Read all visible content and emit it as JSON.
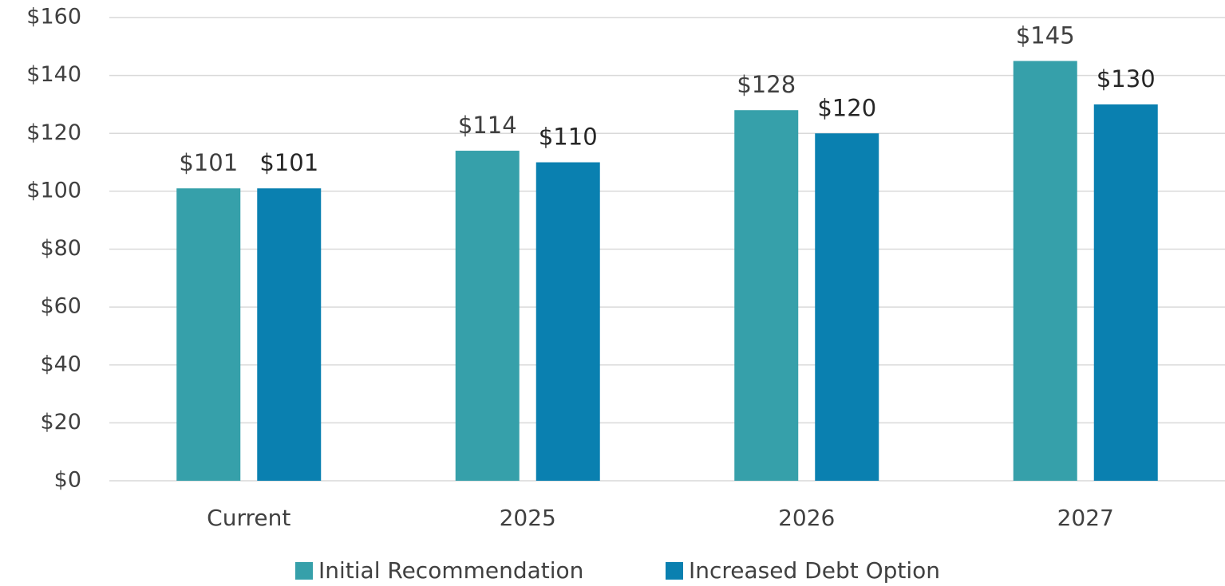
{
  "chart_data": {
    "type": "bar",
    "categories": [
      "Current",
      "2025",
      "2026",
      "2027"
    ],
    "series": [
      {
        "name": "Initial Recommendation",
        "color": "#36a0aa",
        "values": [
          101,
          114,
          128,
          145
        ],
        "value_labels": [
          "$101",
          "$114",
          "$128",
          "$145"
        ]
      },
      {
        "name": "Increased Debt Option",
        "color": "#0a80b0",
        "values": [
          101,
          110,
          120,
          130
        ],
        "value_labels": [
          "$101",
          "$110",
          "$120",
          "$130"
        ]
      }
    ],
    "ylim": [
      0,
      160
    ],
    "yticks": [
      {
        "value": 0,
        "label": "$0"
      },
      {
        "value": 20,
        "label": "$20"
      },
      {
        "value": 40,
        "label": "$40"
      },
      {
        "value": 60,
        "label": "$60"
      },
      {
        "value": 80,
        "label": "$80"
      },
      {
        "value": 100,
        "label": "$100"
      },
      {
        "value": 120,
        "label": "$120"
      },
      {
        "value": 140,
        "label": "$140"
      },
      {
        "value": 160,
        "label": "$160"
      }
    ],
    "grid": true,
    "legend": "bottom"
  }
}
